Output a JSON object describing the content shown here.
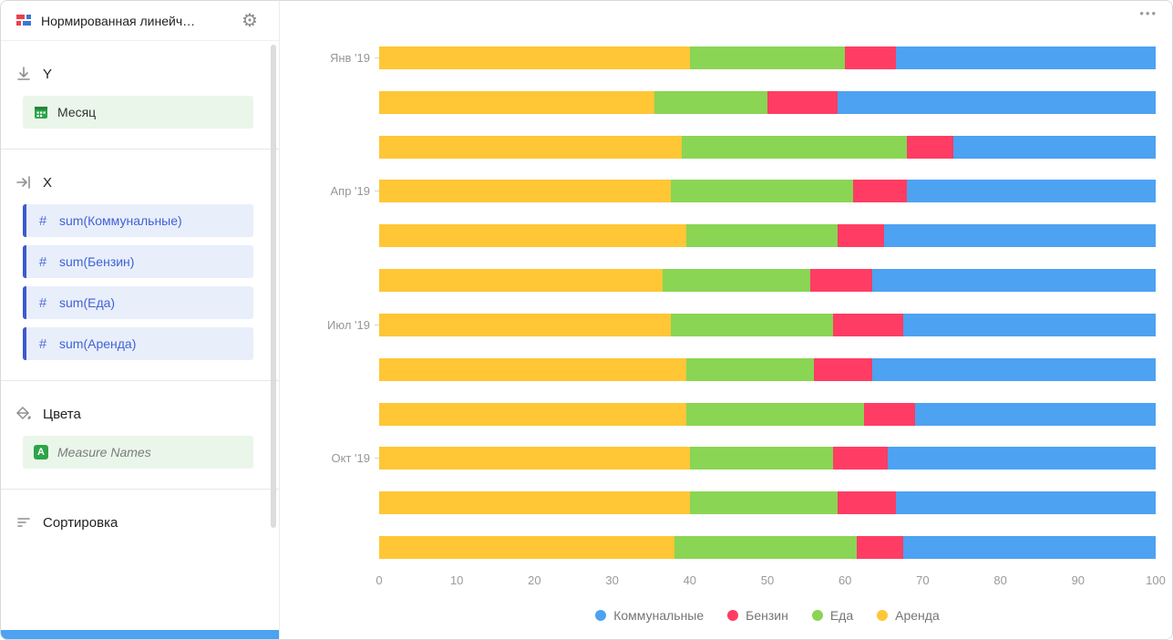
{
  "sidebar": {
    "title": "Нормированная линейч…",
    "sections": {
      "y": {
        "label": "Y",
        "fields": [
          {
            "label": "Месяц"
          }
        ]
      },
      "x": {
        "label": "X",
        "fields": [
          {
            "label": "sum(Коммунальные)"
          },
          {
            "label": "sum(Бензин)"
          },
          {
            "label": "sum(Еда)"
          },
          {
            "label": "sum(Аренда)"
          }
        ]
      },
      "colors": {
        "label": "Цвета",
        "fields": [
          {
            "label": "Measure Names"
          }
        ]
      },
      "sort": {
        "label": "Сортировка"
      }
    },
    "icons": {
      "hash": "#",
      "a_badge": "A"
    }
  },
  "chart": {
    "more_menu": "•••"
  },
  "chart_data": {
    "type": "bar",
    "orientation": "horizontal",
    "normalized": true,
    "categories": [
      "Янв '19",
      "",
      "",
      "Апр '19",
      "",
      "",
      "Июл '19",
      "",
      "",
      "Окт '19",
      "",
      ""
    ],
    "series": [
      {
        "name": "Аренда",
        "color": "#FFC636",
        "values": [
          40,
          35.5,
          39,
          37.5,
          39.5,
          36.5,
          37.5,
          39.5,
          39.5,
          40,
          40,
          38
        ]
      },
      {
        "name": "Еда",
        "color": "#8AD554",
        "values": [
          20,
          14.5,
          29,
          23.5,
          19.5,
          19,
          21,
          16.5,
          23,
          18.5,
          19,
          23.5
        ]
      },
      {
        "name": "Бензин",
        "color": "#FF3D64",
        "values": [
          6.5,
          9,
          6,
          7,
          6,
          8,
          9,
          7.5,
          6.5,
          7,
          7.5,
          6
        ]
      },
      {
        "name": "Коммунальные",
        "color": "#4DA2F1",
        "values": [
          33.5,
          41,
          26,
          32,
          35,
          36.5,
          32.5,
          36.5,
          31,
          34.5,
          33.5,
          32.5
        ]
      }
    ],
    "legend": [
      {
        "label": "Коммунальные",
        "color": "#4DA2F1"
      },
      {
        "label": "Бензин",
        "color": "#FF3D64"
      },
      {
        "label": "Еда",
        "color": "#8AD554"
      },
      {
        "label": "Аренда",
        "color": "#FFC636"
      }
    ],
    "x_ticks": [
      0,
      10,
      20,
      30,
      40,
      50,
      60,
      70,
      80,
      90,
      100
    ],
    "xlim": [
      0,
      100
    ],
    "grid": false,
    "legend_position": "bottom"
  }
}
